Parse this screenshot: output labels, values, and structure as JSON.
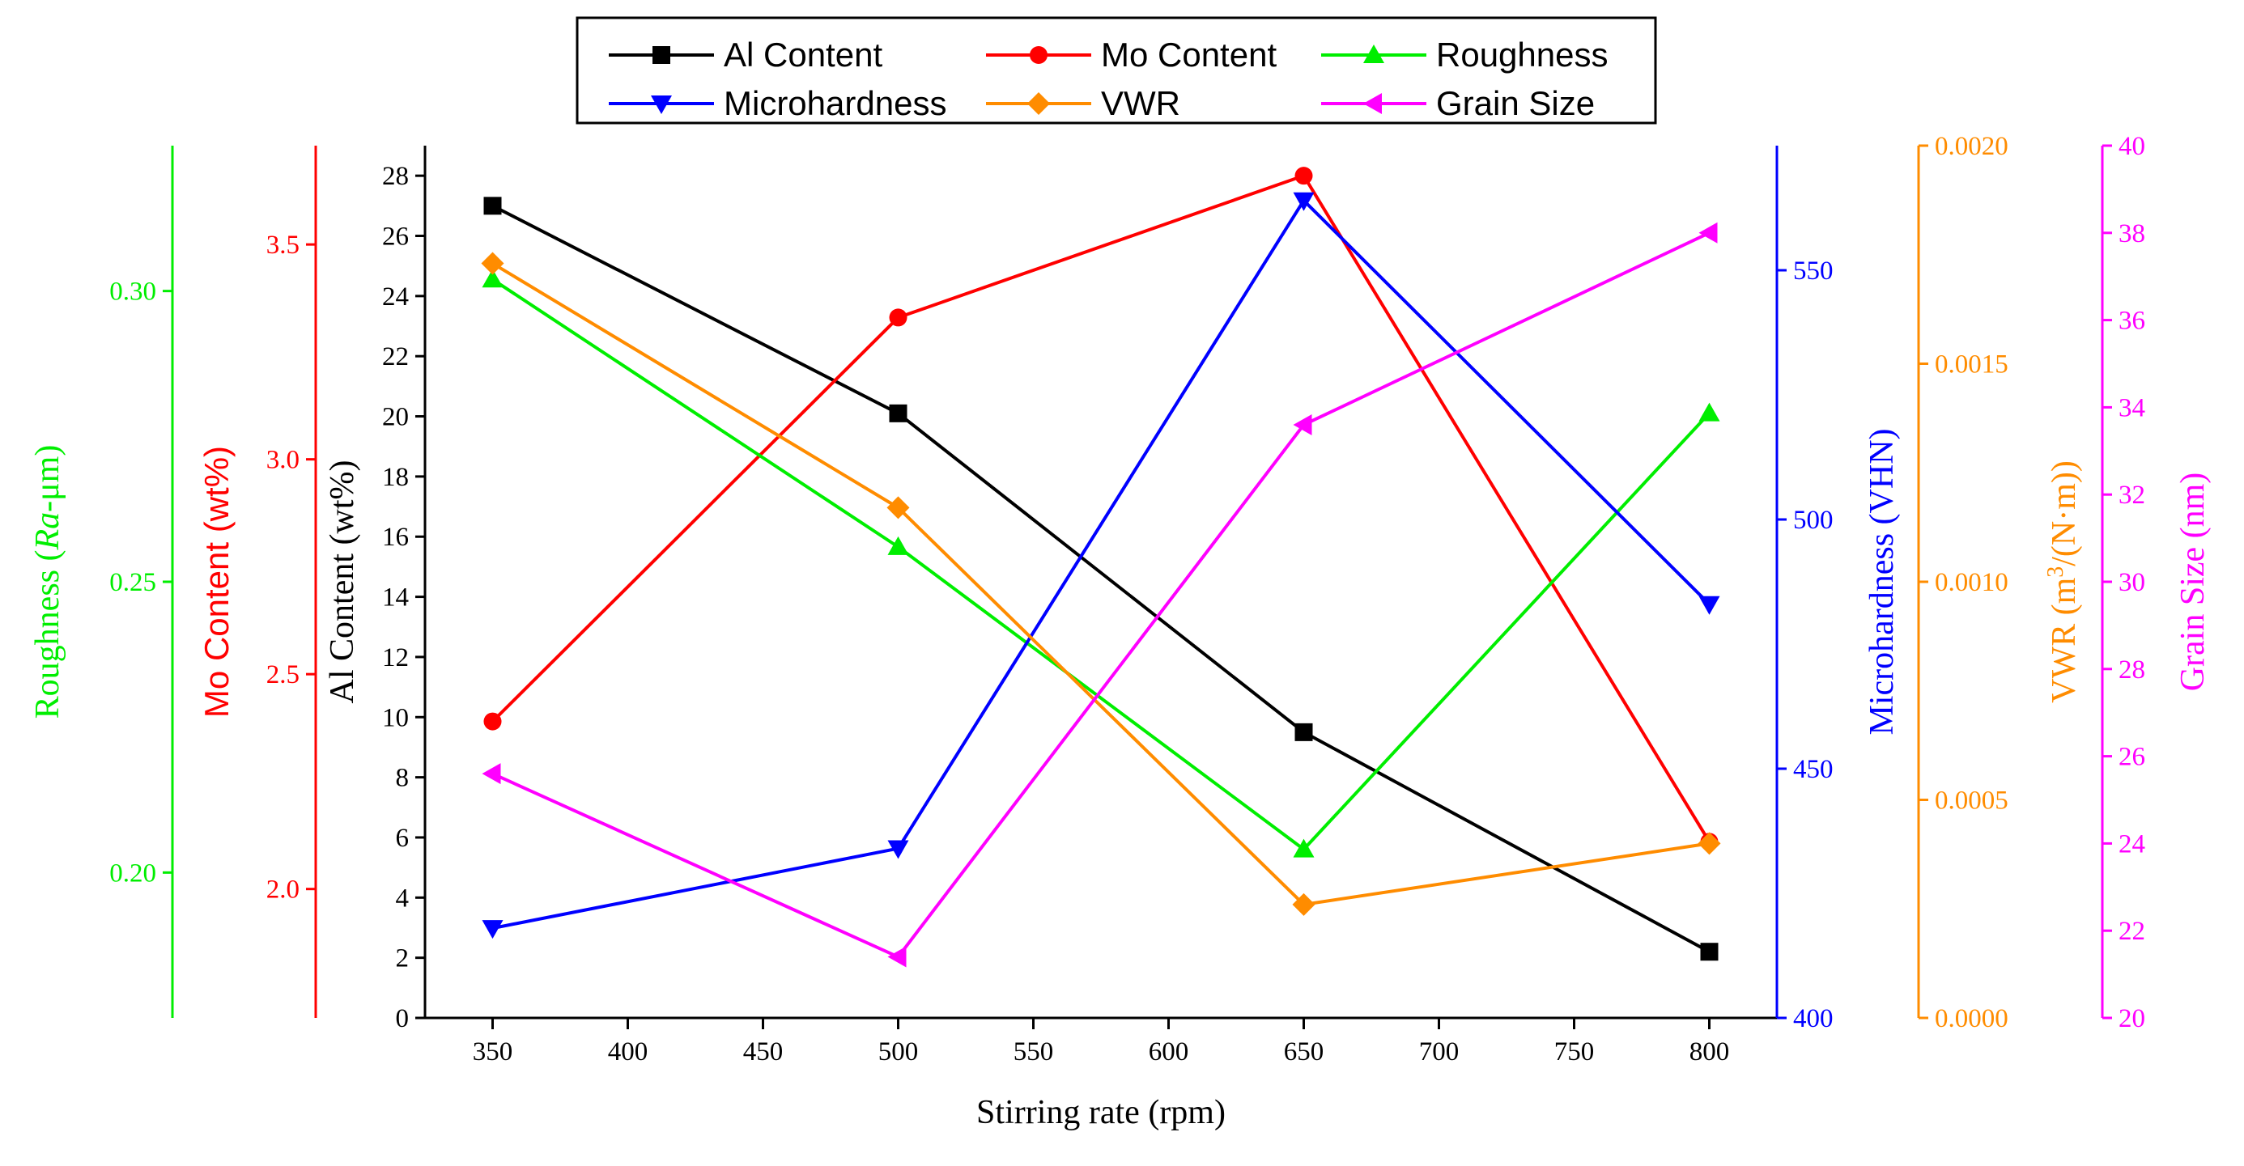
{
  "chart_data": {
    "type": "line",
    "title": "",
    "xlabel": "Stirring rate (rpm)",
    "xlim": [
      325,
      825
    ],
    "xticks": [
      350,
      400,
      450,
      500,
      550,
      600,
      650,
      700,
      750,
      800
    ],
    "x": [
      350,
      500,
      650,
      800
    ],
    "axes": {
      "al": {
        "label": "Al Content (wt%)",
        "range": [
          0,
          29
        ],
        "ticks": [
          0,
          2,
          4,
          6,
          8,
          10,
          12,
          14,
          16,
          18,
          20,
          22,
          24,
          26,
          28
        ],
        "decimals": 0,
        "color": "#000000"
      },
      "mo": {
        "label_main": "Mo Content (wt%)",
        "range": [
          1.7,
          3.73
        ],
        "ticks": [
          2.0,
          2.5,
          3.0,
          3.5
        ],
        "decimals": 1,
        "color": "#ff0000"
      },
      "rough": {
        "label_pre": "Roughness (",
        "label_italic": "Ra",
        "label_post": "-μm)",
        "range": [
          0.175,
          0.325
        ],
        "ticks": [
          0.2,
          0.25,
          0.3
        ],
        "decimals": 2,
        "color": "#00ee00"
      },
      "micro": {
        "label": "Microhardness (VHN)",
        "range": [
          400,
          575
        ],
        "ticks": [
          400,
          450,
          500,
          550
        ],
        "decimals": 0,
        "color": "#0000ff"
      },
      "vwr": {
        "label_pre": "VWR (m",
        "label_sup": "3",
        "label_post": "/(N·m))",
        "range": [
          0,
          0.002
        ],
        "ticks": [
          0.0,
          0.0005,
          0.001,
          0.0015,
          0.002
        ],
        "decimals": 4,
        "color": "#ff8c00"
      },
      "grain": {
        "label": "Grain Size (nm)",
        "range": [
          20,
          40
        ],
        "ticks": [
          20,
          22,
          24,
          26,
          28,
          30,
          32,
          34,
          36,
          38,
          40
        ],
        "decimals": 0,
        "color": "#ff00ff"
      }
    },
    "series": [
      {
        "name": "Al Content",
        "axis": "al",
        "color": "#000000",
        "marker": "square",
        "values": [
          27.0,
          20.1,
          9.5,
          2.2
        ]
      },
      {
        "name": "Mo Content",
        "axis": "mo",
        "color": "#ff0000",
        "marker": "circle",
        "values": [
          2.39,
          3.33,
          3.66,
          2.11
        ]
      },
      {
        "name": "Roughness",
        "axis": "rough",
        "color": "#00ee00",
        "marker": "triangle-up",
        "values": [
          0.302,
          0.256,
          0.204,
          0.279
        ]
      },
      {
        "name": "Microhardness",
        "axis": "micro",
        "color": "#0000ff",
        "marker": "triangle-down",
        "values": [
          418,
          434,
          564,
          483
        ]
      },
      {
        "name": "VWR",
        "axis": "vwr",
        "color": "#ff8c00",
        "marker": "diamond",
        "values": [
          0.00173,
          0.00117,
          0.00026,
          0.0004
        ]
      },
      {
        "name": "Grain Size",
        "axis": "grain",
        "color": "#ff00ff",
        "marker": "triangle-left",
        "values": [
          25.6,
          21.4,
          33.6,
          38.0
        ]
      }
    ]
  }
}
